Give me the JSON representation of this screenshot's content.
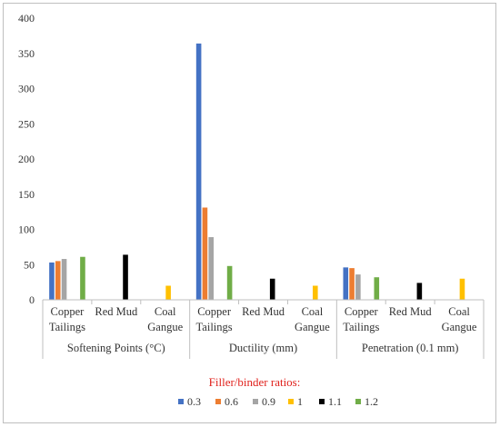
{
  "chart_data": {
    "type": "bar",
    "ylim": [
      0,
      400
    ],
    "yticks": [
      0,
      50,
      100,
      150,
      200,
      250,
      300,
      350,
      400
    ],
    "legend_title": "Filler/binder ratios:",
    "legend_position": "bottom",
    "grid": false,
    "series": [
      {
        "name": "0.3",
        "color": "#4472c4"
      },
      {
        "name": "0.6",
        "color": "#ed7d31"
      },
      {
        "name": "0.9",
        "color": "#a5a5a5"
      },
      {
        "name": "1",
        "color": "#ffc000"
      },
      {
        "name": "1.1",
        "color": "#000000"
      },
      {
        "name": "1.2",
        "color": "#70ad47"
      }
    ],
    "groups": [
      {
        "label": "Softening Points (°C)",
        "categories": [
          {
            "label": [
              "Copper",
              "Tailings"
            ],
            "values": [
              53,
              55,
              58,
              null,
              null,
              61
            ]
          },
          {
            "label": [
              "Red Mud"
            ],
            "values": [
              null,
              null,
              null,
              null,
              64,
              null
            ]
          },
          {
            "label": [
              "Coal",
              "Gangue"
            ],
            "values": [
              null,
              null,
              null,
              20,
              null,
              null
            ]
          }
        ]
      },
      {
        "label": "Ductility (mm)",
        "categories": [
          {
            "label": [
              "Copper",
              "Tailings"
            ],
            "values": [
              364,
              131,
              89,
              null,
              null,
              48
            ]
          },
          {
            "label": [
              "Red Mud"
            ],
            "values": [
              null,
              null,
              null,
              null,
              30,
              null
            ]
          },
          {
            "label": [
              "Coal",
              "Gangue"
            ],
            "values": [
              null,
              null,
              null,
              20,
              null,
              null
            ]
          }
        ]
      },
      {
        "label": "Penetration (0.1 mm)",
        "categories": [
          {
            "label": [
              "Copper",
              "Tailings"
            ],
            "values": [
              46,
              45,
              36,
              null,
              null,
              32
            ]
          },
          {
            "label": [
              "Red Mud"
            ],
            "values": [
              null,
              null,
              null,
              null,
              24,
              null
            ]
          },
          {
            "label": [
              "Coal",
              "Gangue"
            ],
            "values": [
              null,
              null,
              null,
              30,
              null,
              null
            ]
          }
        ]
      }
    ]
  }
}
